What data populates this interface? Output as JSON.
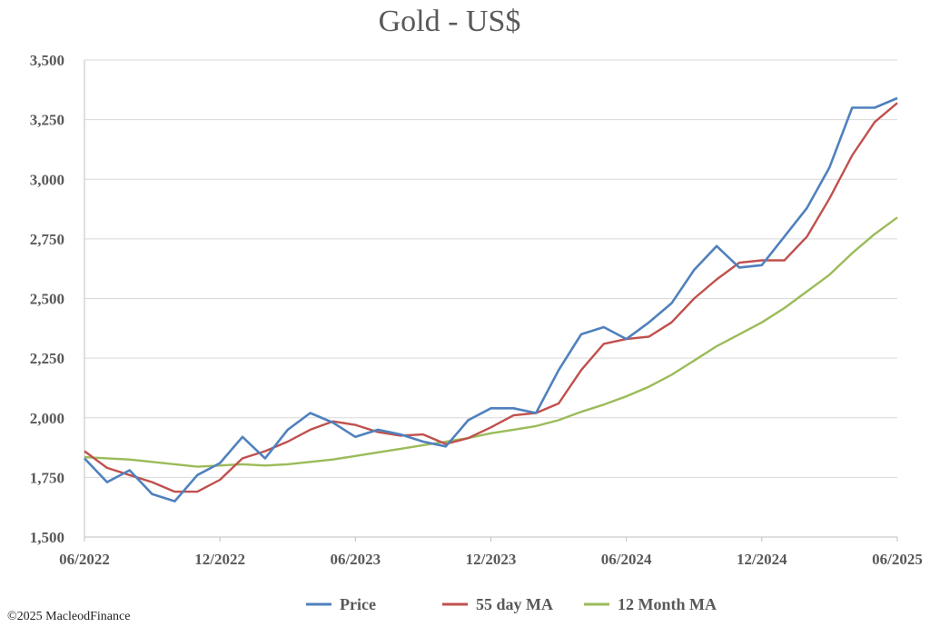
{
  "chart_data": {
    "type": "line",
    "title": "Gold - US$",
    "ylim": [
      1500,
      3500
    ],
    "y_ticks": [
      "1,500",
      "1,750",
      "2,000",
      "2,250",
      "2,500",
      "2,750",
      "3,000",
      "3,250",
      "3,500"
    ],
    "x_ticks": [
      "06/2022",
      "12/2022",
      "06/2023",
      "12/2023",
      "06/2024",
      "12/2024",
      "06/2025"
    ],
    "grid": true,
    "legend_position": "bottom",
    "series": [
      {
        "name": "Price",
        "color": "#4f81bd",
        "x": [
          "2022-06",
          "2022-07",
          "2022-08",
          "2022-09",
          "2022-10",
          "2022-11",
          "2022-12",
          "2023-01",
          "2023-02",
          "2023-03",
          "2023-04",
          "2023-05",
          "2023-06",
          "2023-07",
          "2023-08",
          "2023-09",
          "2023-10",
          "2023-11",
          "2023-12",
          "2024-01",
          "2024-02",
          "2024-03",
          "2024-04",
          "2024-05",
          "2024-06",
          "2024-07",
          "2024-08",
          "2024-09",
          "2024-10",
          "2024-11",
          "2024-12",
          "2025-01",
          "2025-02",
          "2025-03",
          "2025-04",
          "2025-05",
          "2025-06"
        ],
        "values": [
          1830,
          1730,
          1780,
          1680,
          1650,
          1760,
          1810,
          1920,
          1830,
          1950,
          2020,
          1980,
          1920,
          1950,
          1930,
          1900,
          1880,
          1990,
          2040,
          2040,
          2020,
          2200,
          2350,
          2380,
          2330,
          2400,
          2480,
          2620,
          2720,
          2630,
          2640,
          2760,
          2880,
          3050,
          3300,
          3300,
          3340
        ]
      },
      {
        "name": "55 day MA",
        "color": "#c0504d",
        "x": [
          "2022-06",
          "2022-07",
          "2022-08",
          "2022-09",
          "2022-10",
          "2022-11",
          "2022-12",
          "2023-01",
          "2023-02",
          "2023-03",
          "2023-04",
          "2023-05",
          "2023-06",
          "2023-07",
          "2023-08",
          "2023-09",
          "2023-10",
          "2023-11",
          "2023-12",
          "2024-01",
          "2024-02",
          "2024-03",
          "2024-04",
          "2024-05",
          "2024-06",
          "2024-07",
          "2024-08",
          "2024-09",
          "2024-10",
          "2024-11",
          "2024-12",
          "2025-01",
          "2025-02",
          "2025-03",
          "2025-04",
          "2025-05",
          "2025-06"
        ],
        "values": [
          1860,
          1790,
          1760,
          1730,
          1690,
          1690,
          1740,
          1830,
          1860,
          1900,
          1950,
          1985,
          1970,
          1940,
          1925,
          1930,
          1890,
          1915,
          1960,
          2010,
          2020,
          2060,
          2200,
          2310,
          2330,
          2340,
          2400,
          2500,
          2580,
          2650,
          2660,
          2660,
          2760,
          2920,
          3100,
          3240,
          3320
        ]
      },
      {
        "name": "12 Month MA",
        "color": "#9bbb59",
        "x": [
          "2022-06",
          "2022-07",
          "2022-08",
          "2022-09",
          "2022-10",
          "2022-11",
          "2022-12",
          "2023-01",
          "2023-02",
          "2023-03",
          "2023-04",
          "2023-05",
          "2023-06",
          "2023-07",
          "2023-08",
          "2023-09",
          "2023-10",
          "2023-11",
          "2023-12",
          "2024-01",
          "2024-02",
          "2024-03",
          "2024-04",
          "2024-05",
          "2024-06",
          "2024-07",
          "2024-08",
          "2024-09",
          "2024-10",
          "2024-11",
          "2024-12",
          "2025-01",
          "2025-02",
          "2025-03",
          "2025-04",
          "2025-05",
          "2025-06"
        ],
        "values": [
          1835,
          1830,
          1825,
          1815,
          1805,
          1795,
          1800,
          1805,
          1800,
          1805,
          1815,
          1825,
          1840,
          1855,
          1870,
          1885,
          1900,
          1915,
          1935,
          1950,
          1965,
          1990,
          2025,
          2055,
          2090,
          2130,
          2180,
          2240,
          2300,
          2350,
          2400,
          2460,
          2530,
          2600,
          2690,
          2770,
          2840
        ]
      }
    ]
  },
  "footer": {
    "copyright": "©2025 MacleodFinance"
  }
}
